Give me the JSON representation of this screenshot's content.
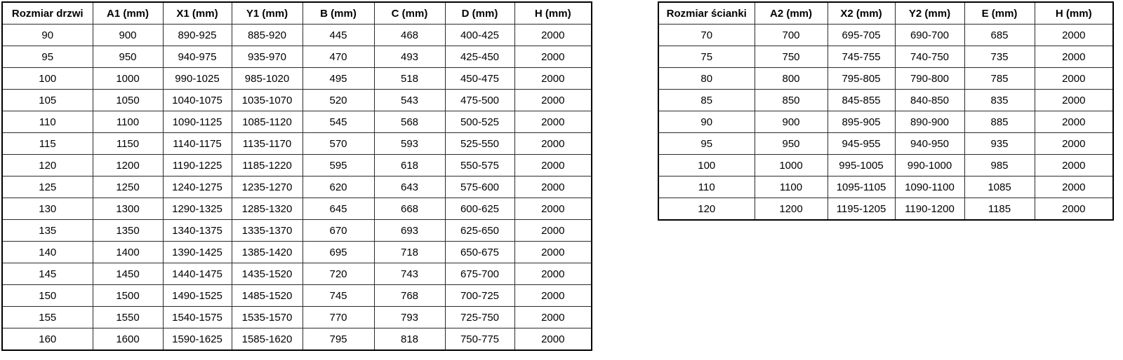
{
  "colors": {
    "background": "#ffffff",
    "border": "#000000",
    "text": "#000000"
  },
  "tables": [
    {
      "name": "door-sizes",
      "headers": [
        "Rozmiar drzwi",
        "A1 (mm)",
        "X1 (mm)",
        "Y1 (mm)",
        "B (mm)",
        "C (mm)",
        "D (mm)",
        "H (mm)"
      ],
      "rows": [
        [
          "90",
          "900",
          "890-925",
          "885-920",
          "445",
          "468",
          "400-425",
          "2000"
        ],
        [
          "95",
          "950",
          "940-975",
          "935-970",
          "470",
          "493",
          "425-450",
          "2000"
        ],
        [
          "100",
          "1000",
          "990-1025",
          "985-1020",
          "495",
          "518",
          "450-475",
          "2000"
        ],
        [
          "105",
          "1050",
          "1040-1075",
          "1035-1070",
          "520",
          "543",
          "475-500",
          "2000"
        ],
        [
          "110",
          "1100",
          "1090-1125",
          "1085-1120",
          "545",
          "568",
          "500-525",
          "2000"
        ],
        [
          "115",
          "1150",
          "1140-1175",
          "1135-1170",
          "570",
          "593",
          "525-550",
          "2000"
        ],
        [
          "120",
          "1200",
          "1190-1225",
          "1185-1220",
          "595",
          "618",
          "550-575",
          "2000"
        ],
        [
          "125",
          "1250",
          "1240-1275",
          "1235-1270",
          "620",
          "643",
          "575-600",
          "2000"
        ],
        [
          "130",
          "1300",
          "1290-1325",
          "1285-1320",
          "645",
          "668",
          "600-625",
          "2000"
        ],
        [
          "135",
          "1350",
          "1340-1375",
          "1335-1370",
          "670",
          "693",
          "625-650",
          "2000"
        ],
        [
          "140",
          "1400",
          "1390-1425",
          "1385-1420",
          "695",
          "718",
          "650-675",
          "2000"
        ],
        [
          "145",
          "1450",
          "1440-1475",
          "1435-1520",
          "720",
          "743",
          "675-700",
          "2000"
        ],
        [
          "150",
          "1500",
          "1490-1525",
          "1485-1520",
          "745",
          "768",
          "700-725",
          "2000"
        ],
        [
          "155",
          "1550",
          "1540-1575",
          "1535-1570",
          "770",
          "793",
          "725-750",
          "2000"
        ],
        [
          "160",
          "1600",
          "1590-1625",
          "1585-1620",
          "795",
          "818",
          "750-775",
          "2000"
        ]
      ]
    },
    {
      "name": "wall-sizes",
      "headers": [
        "Rozmiar ścianki",
        "A2 (mm)",
        "X2 (mm)",
        "Y2 (mm)",
        "E (mm)",
        "H (mm)"
      ],
      "rows": [
        [
          "70",
          "700",
          "695-705",
          "690-700",
          "685",
          "2000"
        ],
        [
          "75",
          "750",
          "745-755",
          "740-750",
          "735",
          "2000"
        ],
        [
          "80",
          "800",
          "795-805",
          "790-800",
          "785",
          "2000"
        ],
        [
          "85",
          "850",
          "845-855",
          "840-850",
          "835",
          "2000"
        ],
        [
          "90",
          "900",
          "895-905",
          "890-900",
          "885",
          "2000"
        ],
        [
          "95",
          "950",
          "945-955",
          "940-950",
          "935",
          "2000"
        ],
        [
          "100",
          "1000",
          "995-1005",
          "990-1000",
          "985",
          "2000"
        ],
        [
          "110",
          "1100",
          "1095-1105",
          "1090-1100",
          "1085",
          "2000"
        ],
        [
          "120",
          "1200",
          "1195-1205",
          "1190-1200",
          "1185",
          "2000"
        ]
      ]
    }
  ]
}
